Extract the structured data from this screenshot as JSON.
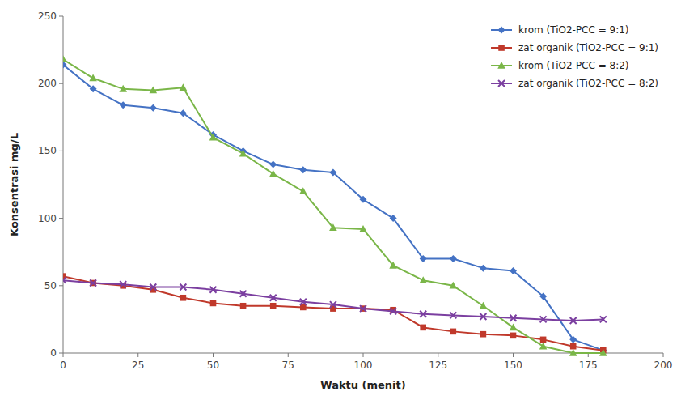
{
  "chart_data": {
    "type": "line",
    "xlabel": "Waktu (menit)",
    "ylabel": "Konsentrasi mg/L",
    "x": [
      0,
      10,
      20,
      30,
      40,
      50,
      60,
      70,
      80,
      90,
      100,
      110,
      120,
      130,
      140,
      150,
      160,
      170,
      180
    ],
    "series": [
      {
        "name": "krom (TiO2-PCC  = 9:1)",
        "color": "#4472C4",
        "marker": "diamond",
        "values": [
          214,
          196,
          184,
          182,
          178,
          162,
          150,
          140,
          136,
          134,
          114,
          100,
          70,
          70,
          63,
          61,
          42,
          10,
          2
        ]
      },
      {
        "name": "zat organik (TiO2-PCC  = 9:1)",
        "color": "#C0392B",
        "marker": "square",
        "values": [
          57,
          52,
          50,
          47,
          41,
          37,
          35,
          35,
          34,
          33,
          33,
          32,
          19,
          16,
          14,
          13,
          10,
          5,
          2
        ]
      },
      {
        "name": "krom (TiO2-PCC = 8:2)",
        "color": "#7AB648",
        "marker": "triangle",
        "values": [
          218,
          204,
          196,
          195,
          197,
          160,
          148,
          133,
          120,
          93,
          92,
          65,
          54,
          50,
          35,
          19,
          5,
          0,
          0
        ]
      },
      {
        "name": "zat organik (TiO2-PCC = 8:2)",
        "color": "#7B3FA0",
        "marker": "x",
        "values": [
          54,
          52,
          51,
          49,
          49,
          47,
          44,
          41,
          38,
          36,
          33,
          31,
          29,
          28,
          27,
          26,
          25,
          24,
          25
        ]
      }
    ],
    "xlim": [
      0,
      200
    ],
    "ylim": [
      0,
      250
    ],
    "xticks": [
      0,
      25,
      50,
      75,
      100,
      125,
      150,
      175,
      200
    ],
    "yticks": [
      0,
      50,
      100,
      150,
      200,
      250
    ],
    "grid": false,
    "legend": "upper right"
  }
}
